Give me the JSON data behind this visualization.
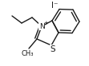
{
  "bg_color": "#ffffff",
  "line_color": "#1a1a1a",
  "line_width": 1.0,
  "font_size": 6.5,
  "iodide_label": "I⁻",
  "N_plus_symbol": "+",
  "S_label": "S",
  "N_label": "N",
  "methyl_label": "CH₃"
}
